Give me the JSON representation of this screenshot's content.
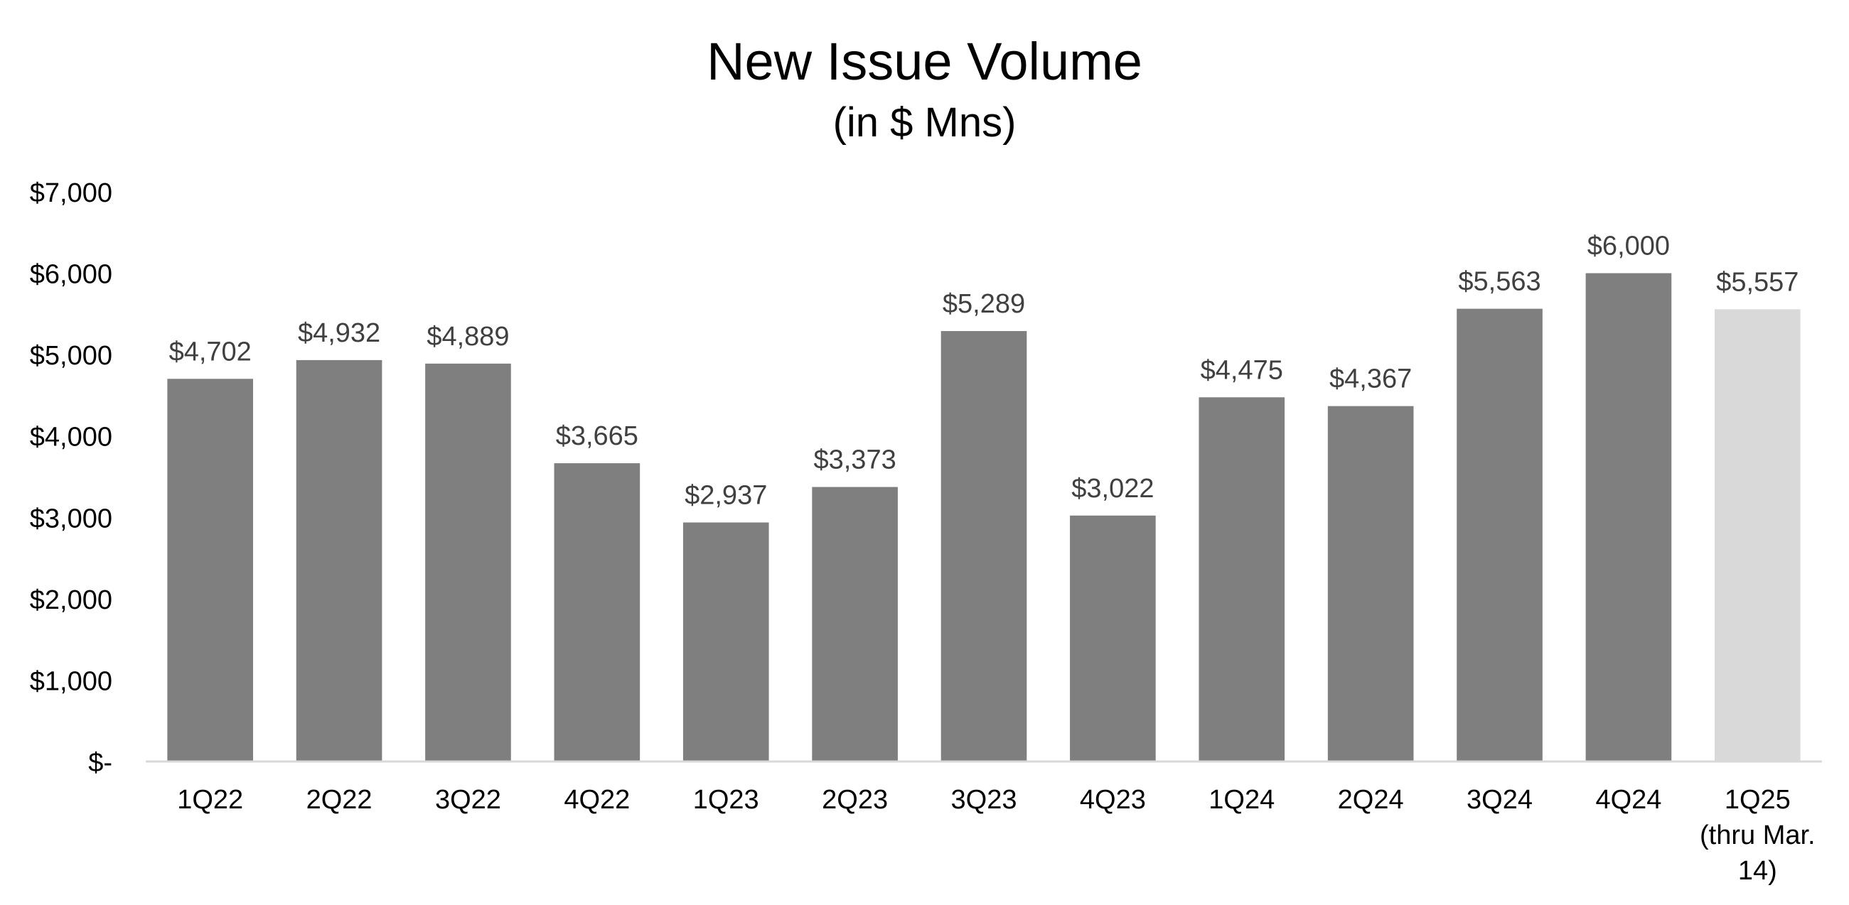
{
  "chart_data": {
    "type": "bar",
    "title": "New Issue Volume",
    "subtitle": "(in $ Mns)",
    "xlabel": "",
    "ylabel": "",
    "categories": [
      "1Q22",
      "2Q22",
      "3Q22",
      "4Q22",
      "1Q23",
      "2Q23",
      "3Q23",
      "4Q23",
      "1Q24",
      "2Q24",
      "3Q24",
      "4Q24",
      "1Q25 (thru Mar. 14)"
    ],
    "category_label_lines": [
      [
        "1Q22"
      ],
      [
        "2Q22"
      ],
      [
        "3Q22"
      ],
      [
        "4Q22"
      ],
      [
        "1Q23"
      ],
      [
        "2Q23"
      ],
      [
        "3Q23"
      ],
      [
        "4Q23"
      ],
      [
        "1Q24"
      ],
      [
        "2Q24"
      ],
      [
        "3Q24"
      ],
      [
        "4Q24"
      ],
      [
        "1Q25",
        "(thru Mar.",
        "14)"
      ]
    ],
    "values": [
      4702,
      4932,
      4889,
      3665,
      2937,
      3373,
      5289,
      3022,
      4475,
      4367,
      5563,
      6000,
      5557
    ],
    "data_labels": [
      "$4,702",
      "$4,932",
      "$4,889",
      "$3,665",
      "$2,937",
      "$3,373",
      "$5,289",
      "$3,022",
      "$4,475",
      "$4,367",
      "$5,563",
      "$6,000",
      "$5,557"
    ],
    "bar_colors": [
      "#7f7f7f",
      "#7f7f7f",
      "#7f7f7f",
      "#7f7f7f",
      "#7f7f7f",
      "#7f7f7f",
      "#7f7f7f",
      "#7f7f7f",
      "#7f7f7f",
      "#7f7f7f",
      "#7f7f7f",
      "#7f7f7f",
      "#d9d9d9"
    ],
    "ylim": [
      0,
      7000
    ],
    "yticks": [
      0,
      1000,
      2000,
      3000,
      4000,
      5000,
      6000,
      7000
    ],
    "ytick_labels": [
      "$-",
      "$1,000",
      "$2,000",
      "$3,000",
      "$4,000",
      "$5,000",
      "$6,000",
      "$7,000"
    ],
    "grid": false,
    "legend": "none",
    "colors": {
      "axis_line": "#d9d9d9",
      "tick_text": "#000000",
      "data_label_text": "#404040"
    }
  }
}
